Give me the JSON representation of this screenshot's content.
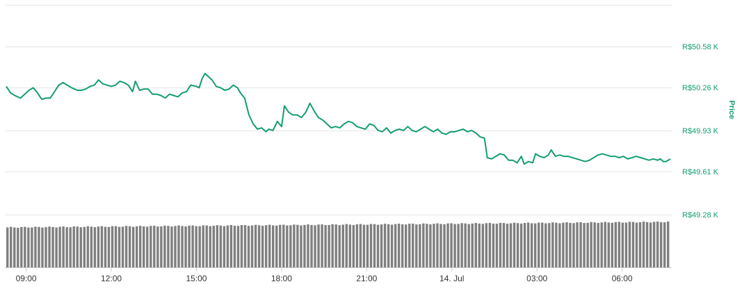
{
  "chart_data": {
    "type": "line",
    "y_axis": {
      "title": "Price",
      "ticks": [
        "R$50.58 K",
        "R$50.26 K",
        "R$49.93 K",
        "R$49.61 K",
        "R$49.28 K"
      ],
      "tick_values": [
        50.58,
        50.26,
        49.93,
        49.61,
        49.28
      ],
      "range": [
        49.28,
        50.9
      ]
    },
    "x_axis": {
      "ticks": [
        "09:00",
        "12:00",
        "15:00",
        "18:00",
        "21:00",
        "14. Jul",
        "03:00",
        "06:00"
      ],
      "tick_hours": [
        9,
        12,
        15,
        18,
        21,
        24,
        27,
        30
      ],
      "range_hours": [
        8.25,
        31.75
      ]
    },
    "grid": true,
    "series": [
      {
        "color": "#119d70",
        "points": [
          [
            8.3,
            50.27
          ],
          [
            8.45,
            50.22
          ],
          [
            8.6,
            50.2
          ],
          [
            8.8,
            50.18
          ],
          [
            8.95,
            50.21
          ],
          [
            9.1,
            50.24
          ],
          [
            9.25,
            50.26
          ],
          [
            9.4,
            50.22
          ],
          [
            9.55,
            50.17
          ],
          [
            9.7,
            50.18
          ],
          [
            9.85,
            50.18
          ],
          [
            10.0,
            50.23
          ],
          [
            10.15,
            50.28
          ],
          [
            10.3,
            50.3
          ],
          [
            10.45,
            50.28
          ],
          [
            10.6,
            50.26
          ],
          [
            10.8,
            50.24
          ],
          [
            10.95,
            50.24
          ],
          [
            11.1,
            50.25
          ],
          [
            11.25,
            50.27
          ],
          [
            11.4,
            50.28
          ],
          [
            11.55,
            50.32
          ],
          [
            11.7,
            50.29
          ],
          [
            11.85,
            50.28
          ],
          [
            12.0,
            50.27
          ],
          [
            12.15,
            50.28
          ],
          [
            12.3,
            50.31
          ],
          [
            12.45,
            50.3
          ],
          [
            12.6,
            50.28
          ],
          [
            12.75,
            50.23
          ],
          [
            12.85,
            50.31
          ],
          [
            13.0,
            50.24
          ],
          [
            13.15,
            50.25
          ],
          [
            13.3,
            50.25
          ],
          [
            13.45,
            50.21
          ],
          [
            13.6,
            50.21
          ],
          [
            13.75,
            50.2
          ],
          [
            13.9,
            50.18
          ],
          [
            14.05,
            50.21
          ],
          [
            14.2,
            50.2
          ],
          [
            14.35,
            50.19
          ],
          [
            14.5,
            50.22
          ],
          [
            14.65,
            50.23
          ],
          [
            14.8,
            50.28
          ],
          [
            15.0,
            50.27
          ],
          [
            15.1,
            50.26
          ],
          [
            15.2,
            50.33
          ],
          [
            15.3,
            50.37
          ],
          [
            15.4,
            50.35
          ],
          [
            15.55,
            50.32
          ],
          [
            15.7,
            50.27
          ],
          [
            15.85,
            50.26
          ],
          [
            16.0,
            50.24
          ],
          [
            16.15,
            50.25
          ],
          [
            16.3,
            50.28
          ],
          [
            16.45,
            50.26
          ],
          [
            16.55,
            50.22
          ],
          [
            16.7,
            50.18
          ],
          [
            16.85,
            50.05
          ],
          [
            17.0,
            49.98
          ],
          [
            17.15,
            49.94
          ],
          [
            17.3,
            49.95
          ],
          [
            17.45,
            49.92
          ],
          [
            17.55,
            49.94
          ],
          [
            17.7,
            49.93
          ],
          [
            17.85,
            50.0
          ],
          [
            18.0,
            49.96
          ],
          [
            18.1,
            50.12
          ],
          [
            18.25,
            50.07
          ],
          [
            18.4,
            50.05
          ],
          [
            18.55,
            50.05
          ],
          [
            18.7,
            50.03
          ],
          [
            18.85,
            50.07
          ],
          [
            19.0,
            50.14
          ],
          [
            19.15,
            50.08
          ],
          [
            19.3,
            50.03
          ],
          [
            19.45,
            50.01
          ],
          [
            19.6,
            49.98
          ],
          [
            19.75,
            49.95
          ],
          [
            19.9,
            49.96
          ],
          [
            20.05,
            49.95
          ],
          [
            20.2,
            49.98
          ],
          [
            20.35,
            50.0
          ],
          [
            20.5,
            49.99
          ],
          [
            20.65,
            49.96
          ],
          [
            20.8,
            49.95
          ],
          [
            20.95,
            49.94
          ],
          [
            21.1,
            49.98
          ],
          [
            21.25,
            49.97
          ],
          [
            21.4,
            49.93
          ],
          [
            21.55,
            49.92
          ],
          [
            21.7,
            49.95
          ],
          [
            21.85,
            49.91
          ],
          [
            22.0,
            49.93
          ],
          [
            22.15,
            49.94
          ],
          [
            22.3,
            49.93
          ],
          [
            22.45,
            49.96
          ],
          [
            22.6,
            49.93
          ],
          [
            22.75,
            49.92
          ],
          [
            22.9,
            49.94
          ],
          [
            23.05,
            49.96
          ],
          [
            23.2,
            49.94
          ],
          [
            23.35,
            49.92
          ],
          [
            23.5,
            49.94
          ],
          [
            23.65,
            49.91
          ],
          [
            23.8,
            49.9
          ],
          [
            23.95,
            49.92
          ],
          [
            24.1,
            49.92
          ],
          [
            24.25,
            49.93
          ],
          [
            24.4,
            49.94
          ],
          [
            24.55,
            49.92
          ],
          [
            24.7,
            49.93
          ],
          [
            24.85,
            49.91
          ],
          [
            25.0,
            49.88
          ],
          [
            25.15,
            49.87
          ],
          [
            25.25,
            49.72
          ],
          [
            25.4,
            49.71
          ],
          [
            25.55,
            49.73
          ],
          [
            25.7,
            49.75
          ],
          [
            25.85,
            49.74
          ],
          [
            26.0,
            49.7
          ],
          [
            26.15,
            49.7
          ],
          [
            26.3,
            49.68
          ],
          [
            26.45,
            49.73
          ],
          [
            26.55,
            49.67
          ],
          [
            26.7,
            49.69
          ],
          [
            26.85,
            49.68
          ],
          [
            26.95,
            49.75
          ],
          [
            27.1,
            49.73
          ],
          [
            27.25,
            49.72
          ],
          [
            27.4,
            49.74
          ],
          [
            27.5,
            49.78
          ],
          [
            27.65,
            49.73
          ],
          [
            27.8,
            49.74
          ],
          [
            27.95,
            49.73
          ],
          [
            28.1,
            49.73
          ],
          [
            28.25,
            49.72
          ],
          [
            28.4,
            49.71
          ],
          [
            28.55,
            49.7
          ],
          [
            28.7,
            49.69
          ],
          [
            28.85,
            49.7
          ],
          [
            29.0,
            49.72
          ],
          [
            29.15,
            49.74
          ],
          [
            29.3,
            49.75
          ],
          [
            29.45,
            49.74
          ],
          [
            29.6,
            49.73
          ],
          [
            29.75,
            49.73
          ],
          [
            29.9,
            49.72
          ],
          [
            30.05,
            49.73
          ],
          [
            30.2,
            49.71
          ],
          [
            30.35,
            49.72
          ],
          [
            30.5,
            49.73
          ],
          [
            30.65,
            49.72
          ],
          [
            30.8,
            49.71
          ],
          [
            30.95,
            49.7
          ],
          [
            31.1,
            49.71
          ],
          [
            31.25,
            49.7
          ],
          [
            31.35,
            49.71
          ],
          [
            31.45,
            49.69
          ],
          [
            31.55,
            49.69
          ],
          [
            31.7,
            49.71
          ]
        ]
      }
    ],
    "volume": {
      "color": "#7f7f7f",
      "count": 190,
      "start_level": 0.8,
      "end_level": 0.91
    }
  }
}
